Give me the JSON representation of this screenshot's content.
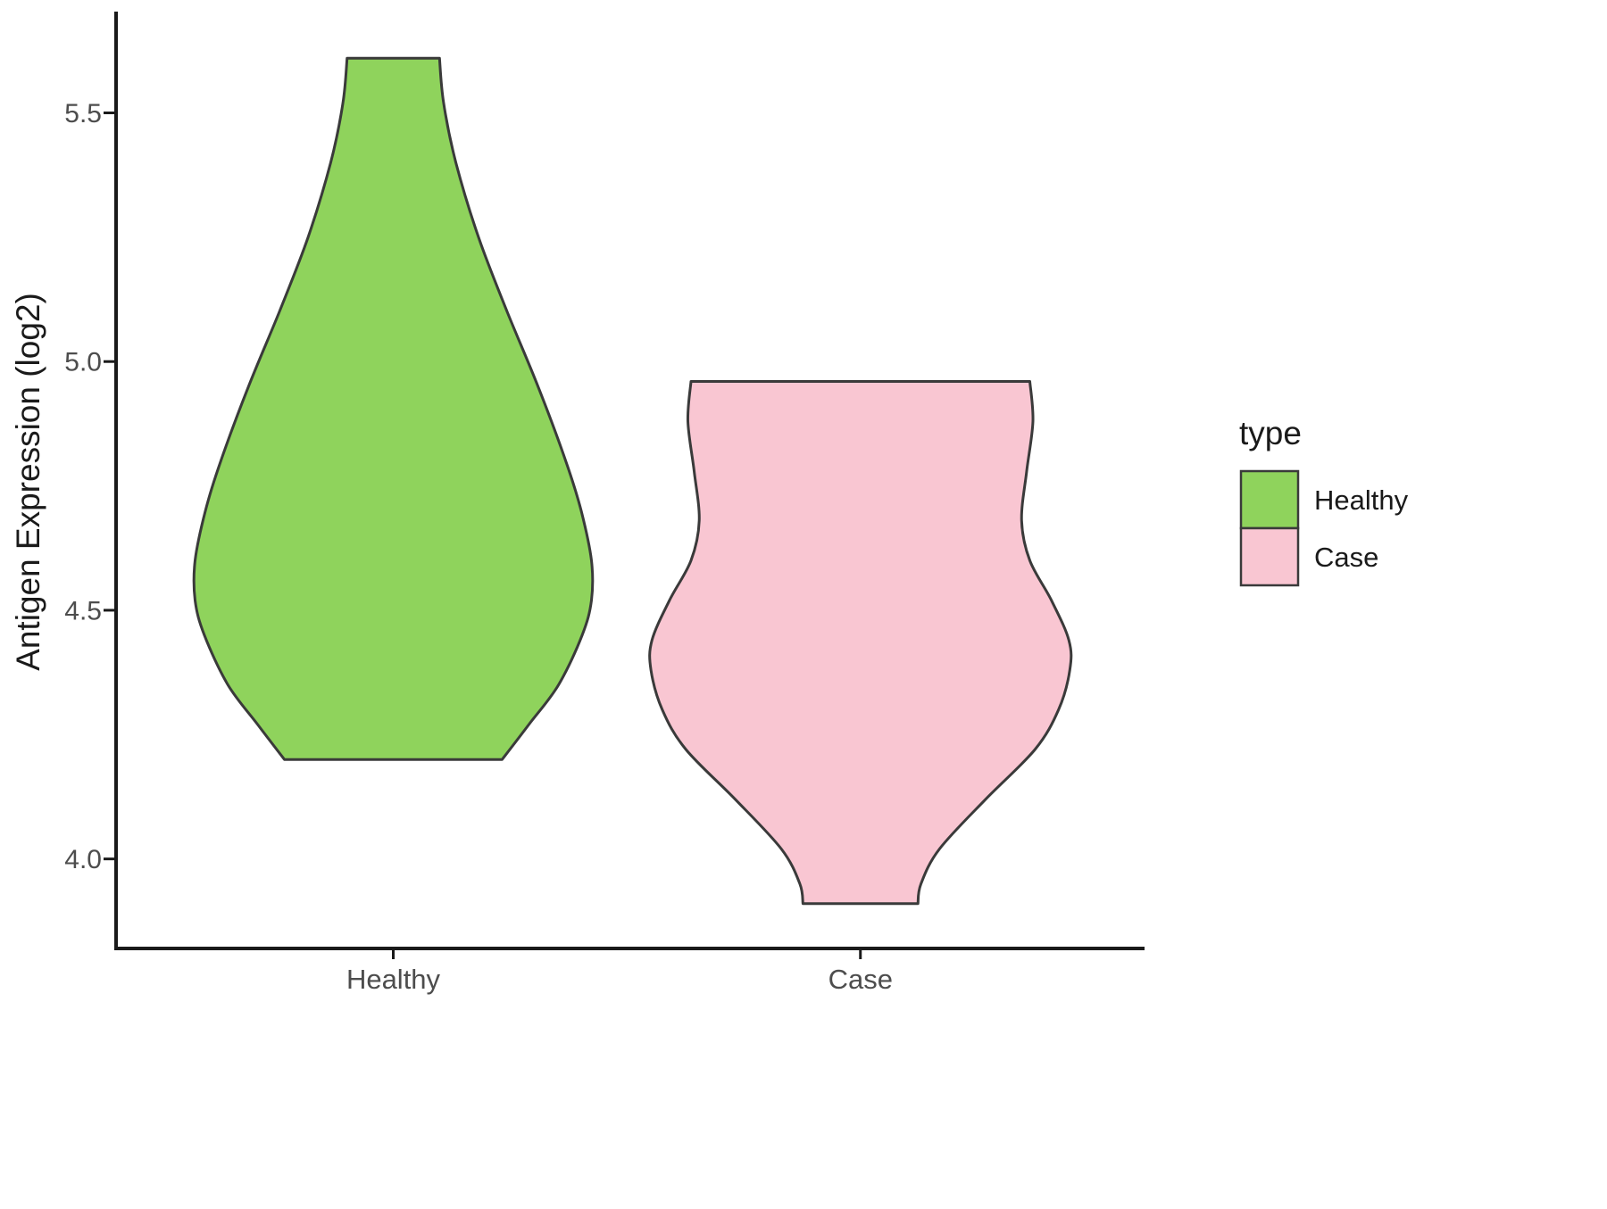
{
  "chart_data": {
    "type": "violin",
    "title": "",
    "xlabel": "",
    "ylabel": "Antigen Expression (log2)",
    "ylim": [
      3.82,
      5.7
    ],
    "yticks": [
      "4.0",
      "4.5",
      "5.0",
      "5.5"
    ],
    "categories": [
      "Healthy",
      "Case"
    ],
    "grid": false,
    "legend": {
      "title": "type",
      "position": "right",
      "entries": [
        {
          "label": "Healthy",
          "color": "#8FD35C"
        },
        {
          "label": "Case",
          "color": "#F9C6D2"
        }
      ]
    },
    "style": {
      "outline_color": "#3A3A3A",
      "axis_color": "#1A1A1A",
      "tick_text_color": "#4D4D4D",
      "label_text_color": "#1A1A1A",
      "background": "#FFFFFF"
    },
    "series": [
      {
        "name": "Healthy",
        "color": "#8FD35C",
        "center_frac": 0.27,
        "profile": [
          [
            5.61,
            0.045
          ],
          [
            5.52,
            0.049
          ],
          [
            5.4,
            0.061
          ],
          [
            5.25,
            0.083
          ],
          [
            5.1,
            0.111
          ],
          [
            4.95,
            0.141
          ],
          [
            4.8,
            0.168
          ],
          [
            4.7,
            0.183
          ],
          [
            4.6,
            0.193
          ],
          [
            4.52,
            0.193
          ],
          [
            4.45,
            0.184
          ],
          [
            4.35,
            0.161
          ],
          [
            4.27,
            0.132
          ],
          [
            4.2,
            0.106
          ]
        ]
      },
      {
        "name": "Case",
        "color": "#F9C6D2",
        "center_frac": 0.725,
        "profile": [
          [
            4.96,
            0.165
          ],
          [
            4.88,
            0.168
          ],
          [
            4.78,
            0.162
          ],
          [
            4.68,
            0.157
          ],
          [
            4.6,
            0.165
          ],
          [
            4.52,
            0.186
          ],
          [
            4.44,
            0.203
          ],
          [
            4.38,
            0.204
          ],
          [
            4.3,
            0.193
          ],
          [
            4.22,
            0.17
          ],
          [
            4.12,
            0.122
          ],
          [
            4.02,
            0.077
          ],
          [
            3.95,
            0.059
          ],
          [
            3.91,
            0.056
          ]
        ]
      }
    ]
  }
}
